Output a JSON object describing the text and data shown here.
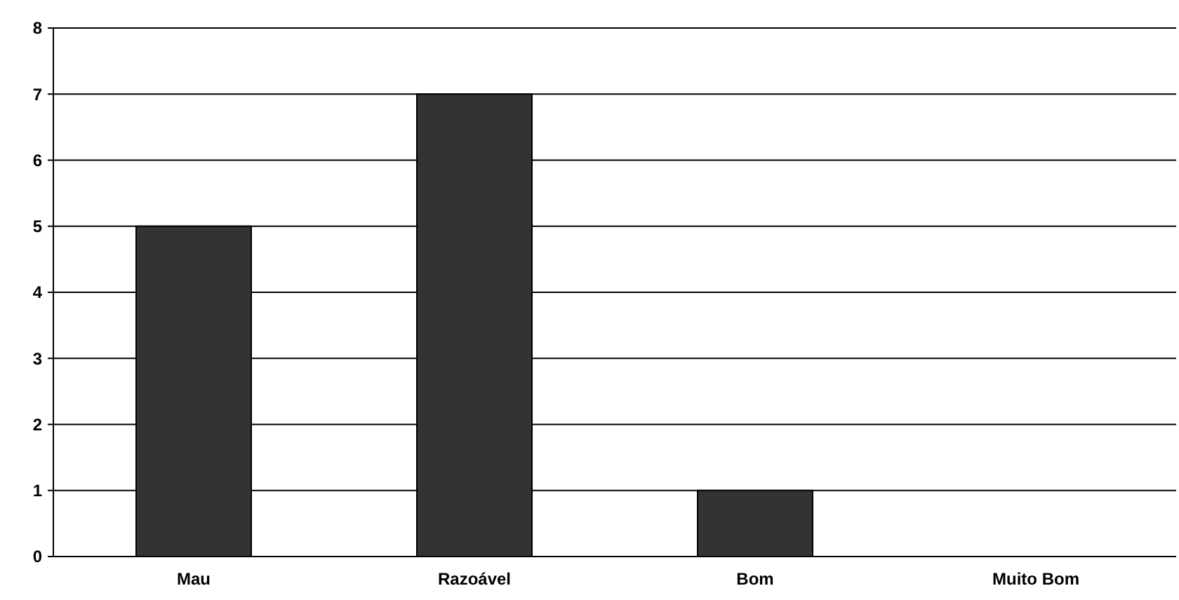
{
  "chart_data": {
    "type": "bar",
    "categories": [
      "Mau",
      "Razoável",
      "Bom",
      "Muito Bom"
    ],
    "values": [
      5,
      7,
      1,
      0
    ],
    "color": "#333333",
    "ylim": [
      0,
      8
    ],
    "yticks": [
      0,
      1,
      2,
      3,
      4,
      5,
      6,
      7,
      8
    ],
    "grid": "y"
  }
}
